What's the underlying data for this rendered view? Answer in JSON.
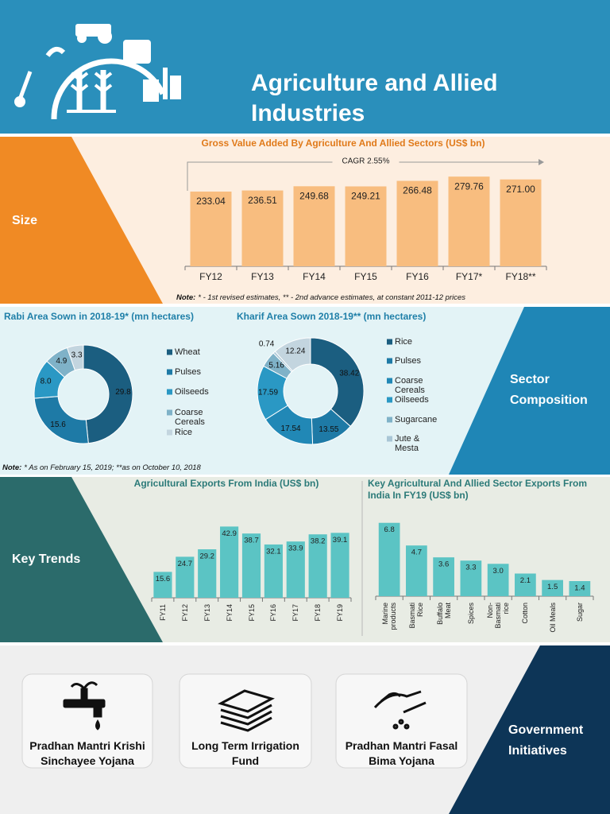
{
  "header": {
    "title": "Agriculture and Allied Industries"
  },
  "sections": {
    "size": "Size",
    "sector_composition": "Sector Composition",
    "key_trends": "Key Trends",
    "government_initiatives": "Government Initiatives"
  },
  "sector_note": {
    "label": "Note:",
    "text": "* As on February 15, 2019; **as on October 10, 2018"
  },
  "initiatives": [
    "Pradhan Mantri Krishi Sinchayee Yojana",
    "Long Term Irrigation Fund",
    "Pradhan Mantri Fasal Bima Yojana"
  ],
  "chart_data": [
    {
      "type": "bar",
      "title": "Gross Value Added By Agriculture And Allied Sectors (US$ bn)",
      "categories": [
        "FY12",
        "FY13",
        "FY14",
        "FY15",
        "FY16",
        "FY17*",
        "FY18**"
      ],
      "values": [
        233.04,
        236.51,
        249.68,
        249.21,
        266.48,
        279.76,
        271
      ],
      "value_labels": [
        "233.04",
        "236.51",
        "249.68",
        "249.21",
        "266.48",
        "279.76",
        "271.00"
      ],
      "color": "#f8bd7f",
      "ylim": [
        0,
        300
      ],
      "annotation": "CAGR 2.55%",
      "note": {
        "label": "Note:",
        "text": "* - 1st revised estimates, ** - 2nd advance estimates, at constant 2011-12 prices"
      }
    },
    {
      "type": "donut",
      "title": "Rabi Area Sown in 2018-19* (mn hectares)",
      "categories": [
        "Wheat",
        "Pulses",
        "Oilseeds",
        "Coarse Cereals",
        "Rice"
      ],
      "values": [
        29.8,
        15.6,
        8,
        4.9,
        3.3
      ],
      "value_labels": [
        "29.8",
        "15.6",
        "8.0",
        "4.9",
        "3.3"
      ],
      "colors": [
        "#1b5e80",
        "#1e7aa6",
        "#2a98c4",
        "#7fb2c8",
        "#c3d5df"
      ]
    },
    {
      "type": "donut",
      "title": "Kharif Area Sown 2018-19** (mn hectares)",
      "categories": [
        "Rice",
        "Pulses",
        "Coarse Cereals",
        "Oilseeds",
        "Sugarcane",
        "Jute & Mesta",
        null
      ],
      "values": [
        38.42,
        13.55,
        17.54,
        17.59,
        5.16,
        0.74,
        12.24
      ],
      "colors": [
        "#1b5e80",
        "#1e7aa6",
        "#2188b6",
        "#2a98c4",
        "#7fb2c8",
        "#a9c6d6",
        "#c3d5df"
      ]
    },
    {
      "type": "bar",
      "title": "Agricultural Exports From India (US$ bn)",
      "categories": [
        "FY11",
        "FY12",
        "FY13",
        "FY14",
        "FY15",
        "FY16",
        "FY17",
        "FY18",
        "FY19"
      ],
      "values": [
        15.6,
        24.7,
        29.2,
        42.9,
        38.7,
        32.1,
        33.9,
        38.2,
        39.1
      ],
      "color": "#5bc4c4",
      "ylim": [
        0,
        45
      ]
    },
    {
      "type": "bar",
      "title": "Key Agricultural And Allied Sector Exports From India In FY19 (US$ bn)",
      "categories": [
        "Marine products",
        "Basmati Rice",
        "Buffalo Meat",
        "Spices",
        "Non-Basmati rice",
        "Cotton",
        "Oil Meals",
        "Sugar"
      ],
      "values": [
        6.8,
        4.7,
        3.6,
        3.3,
        3,
        2.1,
        1.5,
        1.4
      ],
      "value_labels": [
        "6.8",
        "4.7",
        "3.6",
        "3.3",
        "3.0",
        "2.1",
        "1.5",
        "1.4"
      ],
      "color": "#5bc4c4",
      "ylim": [
        0,
        7
      ]
    }
  ]
}
